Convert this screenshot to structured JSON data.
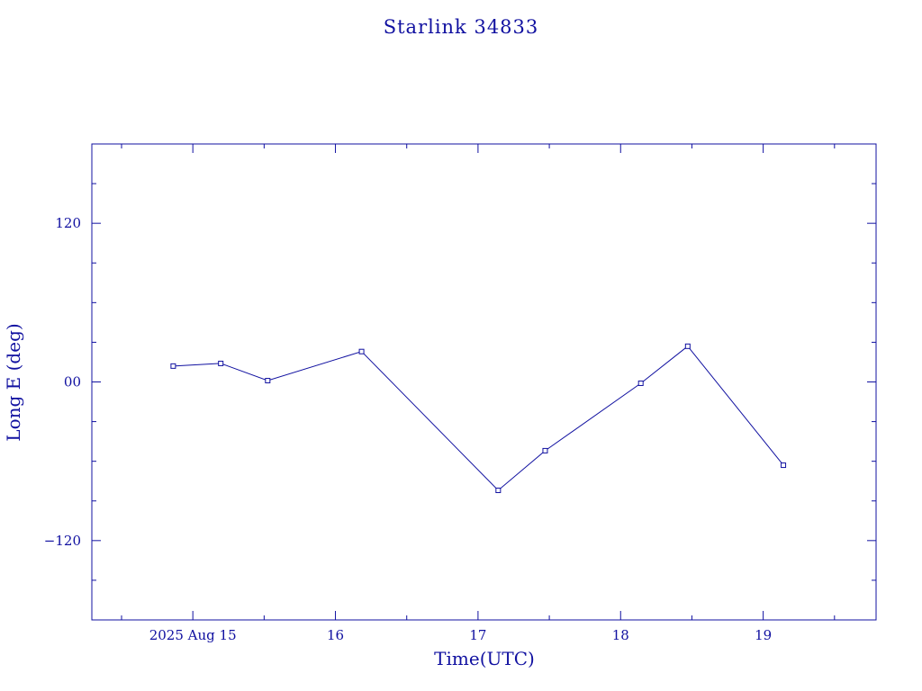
{
  "chart_data": {
    "type": "line",
    "title": "Starlink 34833",
    "xlabel": "Time(UTC)",
    "ylabel": "Long E (deg)",
    "ylim": [
      -180,
      180
    ],
    "xlim": [
      "2025-08-14 07:00",
      "2025-08-19 19:00"
    ],
    "grid": false,
    "x_ticks": [
      {
        "at": "2025-08-15 00:00",
        "label": "2025 Aug 15"
      },
      {
        "at": "2025-08-16 00:00",
        "label": "16"
      },
      {
        "at": "2025-08-17 00:00",
        "label": "17"
      },
      {
        "at": "2025-08-18 00:00",
        "label": "18"
      },
      {
        "at": "2025-08-19 00:00",
        "label": "19"
      }
    ],
    "y_ticks": [
      {
        "at": 120,
        "label": "120"
      },
      {
        "at": 0,
        "label": "00"
      },
      {
        "at": -120,
        "label": "−120"
      }
    ],
    "series": [
      {
        "color": "#1010a0",
        "marker": "square",
        "points": [
          {
            "x": "2025-08-14 20:42",
            "y": 12
          },
          {
            "x": "2025-08-15 04:42",
            "y": 14
          },
          {
            "x": "2025-08-15 12:36",
            "y": 1
          },
          {
            "x": "2025-08-16 04:24",
            "y": 23
          },
          {
            "x": "2025-08-17 03:24",
            "y": -82
          },
          {
            "x": "2025-08-17 11:18",
            "y": -52
          },
          {
            "x": "2025-08-18 03:24",
            "y": -1
          },
          {
            "x": "2025-08-18 11:18",
            "y": 27
          },
          {
            "x": "2025-08-19 03:24",
            "y": -63
          }
        ]
      }
    ]
  }
}
